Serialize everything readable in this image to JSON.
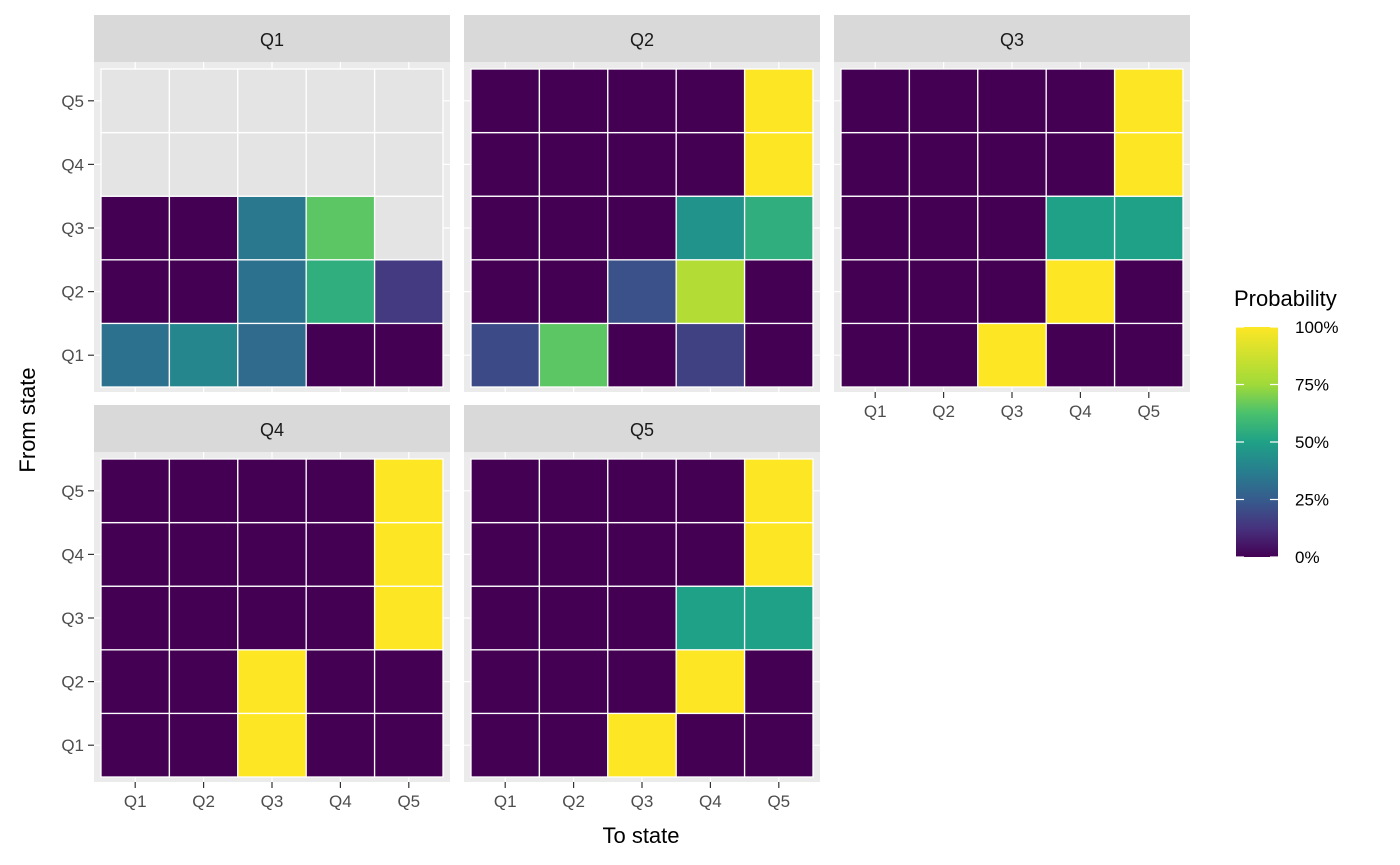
{
  "chart_data": {
    "type": "heatmap",
    "facet_variable": "panel",
    "facets": [
      "Q1",
      "Q2",
      "Q3",
      "Q4",
      "Q5"
    ],
    "x_categories": [
      "Q1",
      "Q2",
      "Q3",
      "Q4",
      "Q5"
    ],
    "y_categories": [
      "Q1",
      "Q2",
      "Q3",
      "Q4",
      "Q5"
    ],
    "xlabel": "To state",
    "ylabel": "From state",
    "legend": {
      "title": "Probability",
      "placement": "right",
      "breaks": [
        0,
        25,
        50,
        75,
        100
      ],
      "break_labels": [
        "0%",
        "25%",
        "50%",
        "75%",
        "100%"
      ],
      "limits": [
        0,
        100
      ]
    },
    "colormap": "viridis",
    "na_color": "#e4e4e4",
    "panel_background": "#ebebeb",
    "strip_background": "#d9d9d9",
    "grid": true,
    "panels": [
      {
        "name": "Q1",
        "show_x_axis": false,
        "show_y_axis": true,
        "rows": {
          "Q1": [
            33,
            40,
            30,
            0,
            0
          ],
          "Q2": [
            0,
            0,
            33,
            55,
            15
          ],
          "Q3": [
            0,
            0,
            35,
            65,
            null
          ],
          "Q4": [
            null,
            null,
            null,
            null,
            null
          ],
          "Q5": [
            null,
            null,
            null,
            null,
            null
          ]
        }
      },
      {
        "name": "Q2",
        "show_x_axis": false,
        "show_y_axis": false,
        "rows": {
          "Q1": [
            20,
            65,
            0,
            17,
            0
          ],
          "Q2": [
            0,
            0,
            22,
            80,
            0
          ],
          "Q3": [
            0,
            0,
            0,
            45,
            55
          ],
          "Q4": [
            0,
            0,
            0,
            0,
            100
          ],
          "Q5": [
            0,
            0,
            0,
            0,
            100
          ]
        }
      },
      {
        "name": "Q3",
        "show_x_axis": true,
        "show_y_axis": false,
        "rows": {
          "Q1": [
            0,
            0,
            100,
            0,
            0
          ],
          "Q2": [
            0,
            0,
            0,
            100,
            0
          ],
          "Q3": [
            0,
            0,
            0,
            50,
            50
          ],
          "Q4": [
            0,
            0,
            0,
            0,
            100
          ],
          "Q5": [
            0,
            0,
            0,
            0,
            100
          ]
        }
      },
      {
        "name": "Q4",
        "show_x_axis": true,
        "show_y_axis": true,
        "rows": {
          "Q1": [
            0,
            0,
            100,
            0,
            0
          ],
          "Q2": [
            0,
            0,
            100,
            0,
            0
          ],
          "Q3": [
            0,
            0,
            0,
            0,
            100
          ],
          "Q4": [
            0,
            0,
            0,
            0,
            100
          ],
          "Q5": [
            0,
            0,
            0,
            0,
            100
          ]
        }
      },
      {
        "name": "Q5",
        "show_x_axis": true,
        "show_y_axis": false,
        "rows": {
          "Q1": [
            0,
            0,
            100,
            0,
            0
          ],
          "Q2": [
            0,
            0,
            0,
            100,
            0
          ],
          "Q3": [
            0,
            0,
            0,
            50,
            50
          ],
          "Q4": [
            0,
            0,
            0,
            0,
            100
          ],
          "Q5": [
            0,
            0,
            0,
            0,
            100
          ]
        }
      }
    ]
  }
}
